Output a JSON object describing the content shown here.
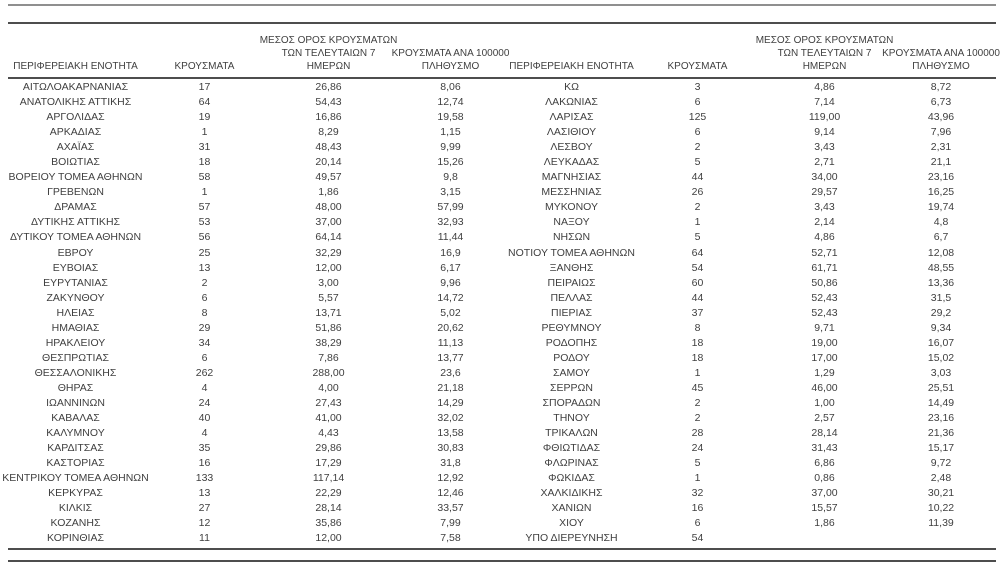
{
  "page": {
    "background": "#ffffff",
    "text_color": "#3f3f3f",
    "rule_color_dark": "#4d4d4d",
    "rule_color_light": "#8f8f8f"
  },
  "table": {
    "header": [
      "ΠΕΡΙΦΕΡΕΙΑΚΗ ΕΝΟΤΗΤΑ",
      "ΚΡΟΥΣΜΑΤΑ",
      "ΜΕΣΟΣ ΟΡΟΣ ΚΡΟΥΣΜΑΤΩΝ\nΤΩΝ ΤΕΛΕΥΤΑΙΩΝ 7\nΗΜΕΡΩΝ",
      "ΚΡΟΥΣΜΑΤΑ ΑΝΑ 100000\nΠΛΗΘΥΣΜΟ"
    ],
    "left_rows": [
      [
        "ΑΙΤΩΛΟΑΚΑΡΝΑΝΙΑΣ",
        "17",
        "26,86",
        "8,06"
      ],
      [
        "ΑΝΑΤΟΛΙΚΗΣ ΑΤΤΙΚΗΣ",
        "64",
        "54,43",
        "12,74"
      ],
      [
        "ΑΡΓΟΛΙΔΑΣ",
        "19",
        "16,86",
        "19,58"
      ],
      [
        "ΑΡΚΑΔΙΑΣ",
        "1",
        "8,29",
        "1,15"
      ],
      [
        "ΑΧΑΪΑΣ",
        "31",
        "48,43",
        "9,99"
      ],
      [
        "ΒΟΙΩΤΙΑΣ",
        "18",
        "20,14",
        "15,26"
      ],
      [
        "ΒΟΡΕΙΟΥ ΤΟΜΕΑ ΑΘΗΝΩΝ",
        "58",
        "49,57",
        "9,8"
      ],
      [
        "ΓΡΕΒΕΝΩΝ",
        "1",
        "1,86",
        "3,15"
      ],
      [
        "ΔΡΑΜΑΣ",
        "57",
        "48,00",
        "57,99"
      ],
      [
        "ΔΥΤΙΚΗΣ ΑΤΤΙΚΗΣ",
        "53",
        "37,00",
        "32,93"
      ],
      [
        "ΔΥΤΙΚΟΥ ΤΟΜΕΑ ΑΘΗΝΩΝ",
        "56",
        "64,14",
        "11,44"
      ],
      [
        "ΕΒΡΟΥ",
        "25",
        "32,29",
        "16,9"
      ],
      [
        "ΕΥΒΟΙΑΣ",
        "13",
        "12,00",
        "6,17"
      ],
      [
        "ΕΥΡΥΤΑΝΙΑΣ",
        "2",
        "3,00",
        "9,96"
      ],
      [
        "ΖΑΚΥΝΘΟΥ",
        "6",
        "5,57",
        "14,72"
      ],
      [
        "ΗΛΕΙΑΣ",
        "8",
        "13,71",
        "5,02"
      ],
      [
        "ΗΜΑΘΙΑΣ",
        "29",
        "51,86",
        "20,62"
      ],
      [
        "ΗΡΑΚΛΕΙΟΥ",
        "34",
        "38,29",
        "11,13"
      ],
      [
        "ΘΕΣΠΡΩΤΙΑΣ",
        "6",
        "7,86",
        "13,77"
      ],
      [
        "ΘΕΣΣΑΛΟΝΙΚΗΣ",
        "262",
        "288,00",
        "23,6"
      ],
      [
        "ΘΗΡΑΣ",
        "4",
        "4,00",
        "21,18"
      ],
      [
        "ΙΩΑΝΝΙΝΩΝ",
        "24",
        "27,43",
        "14,29"
      ],
      [
        "ΚΑΒΑΛΑΣ",
        "40",
        "41,00",
        "32,02"
      ],
      [
        "ΚΑΛΥΜΝΟΥ",
        "4",
        "4,43",
        "13,58"
      ],
      [
        "ΚΑΡΔΙΤΣΑΣ",
        "35",
        "29,86",
        "30,83"
      ],
      [
        "ΚΑΣΤΟΡΙΑΣ",
        "16",
        "17,29",
        "31,8"
      ],
      [
        "ΚΕΝΤΡΙΚΟΥ ΤΟΜΕΑ ΑΘΗΝΩΝ",
        "133",
        "117,14",
        "12,92"
      ],
      [
        "ΚΕΡΚΥΡΑΣ",
        "13",
        "22,29",
        "12,46"
      ],
      [
        "ΚΙΛΚΙΣ",
        "27",
        "28,14",
        "33,57"
      ],
      [
        "ΚΟΖΑΝΗΣ",
        "12",
        "35,86",
        "7,99"
      ],
      [
        "ΚΟΡΙΝΘΙΑΣ",
        "11",
        "12,00",
        "7,58"
      ]
    ],
    "right_rows": [
      [
        "ΚΩ",
        "3",
        "4,86",
        "8,72"
      ],
      [
        "ΛΑΚΩΝΙΑΣ",
        "6",
        "7,14",
        "6,73"
      ],
      [
        "ΛΑΡΙΣΑΣ",
        "125",
        "119,00",
        "43,96"
      ],
      [
        "ΛΑΣΙΘΙΟΥ",
        "6",
        "9,14",
        "7,96"
      ],
      [
        "ΛΕΣΒΟΥ",
        "2",
        "3,43",
        "2,31"
      ],
      [
        "ΛΕΥΚΑΔΑΣ",
        "5",
        "2,71",
        "21,1"
      ],
      [
        "ΜΑΓΝΗΣΙΑΣ",
        "44",
        "34,00",
        "23,16"
      ],
      [
        "ΜΕΣΣΗΝΙΑΣ",
        "26",
        "29,57",
        "16,25"
      ],
      [
        "ΜΥΚΟΝΟΥ",
        "2",
        "3,43",
        "19,74"
      ],
      [
        "ΝΑΞΟΥ",
        "1",
        "2,14",
        "4,8"
      ],
      [
        "ΝΗΣΩΝ",
        "5",
        "4,86",
        "6,7"
      ],
      [
        "ΝΟΤΙΟΥ ΤΟΜΕΑ ΑΘΗΝΩΝ",
        "64",
        "52,71",
        "12,08"
      ],
      [
        "ΞΑΝΘΗΣ",
        "54",
        "61,71",
        "48,55"
      ],
      [
        "ΠΕΙΡΑΙΩΣ",
        "60",
        "50,86",
        "13,36"
      ],
      [
        "ΠΕΛΛΑΣ",
        "44",
        "52,43",
        "31,5"
      ],
      [
        "ΠΙΕΡΙΑΣ",
        "37",
        "52,43",
        "29,2"
      ],
      [
        "ΡΕΘΥΜΝΟΥ",
        "8",
        "9,71",
        "9,34"
      ],
      [
        "ΡΟΔΟΠΗΣ",
        "18",
        "19,00",
        "16,07"
      ],
      [
        "ΡΟΔΟΥ",
        "18",
        "17,00",
        "15,02"
      ],
      [
        "ΣΑΜΟΥ",
        "1",
        "1,29",
        "3,03"
      ],
      [
        "ΣΕΡΡΩΝ",
        "45",
        "46,00",
        "25,51"
      ],
      [
        "ΣΠΟΡΑΔΩΝ",
        "2",
        "1,00",
        "14,49"
      ],
      [
        "ΤΗΝΟΥ",
        "2",
        "2,57",
        "23,16"
      ],
      [
        "ΤΡΙΚΑΛΩΝ",
        "28",
        "28,14",
        "21,36"
      ],
      [
        "ΦΘΙΩΤΙΔΑΣ",
        "24",
        "31,43",
        "15,17"
      ],
      [
        "ΦΛΩΡΙΝΑΣ",
        "5",
        "6,86",
        "9,72"
      ],
      [
        "ΦΩΚΙΔΑΣ",
        "1",
        "0,86",
        "2,48"
      ],
      [
        "ΧΑΛΚΙΔΙΚΗΣ",
        "32",
        "37,00",
        "30,21"
      ],
      [
        "ΧΑΝΙΩΝ",
        "16",
        "15,57",
        "10,22"
      ],
      [
        "ΧΙΟΥ",
        "6",
        "1,86",
        "11,39"
      ],
      [
        "ΥΠΟ ΔΙΕΡΕΥΝΗΣΗ",
        "54",
        "",
        ""
      ]
    ]
  }
}
